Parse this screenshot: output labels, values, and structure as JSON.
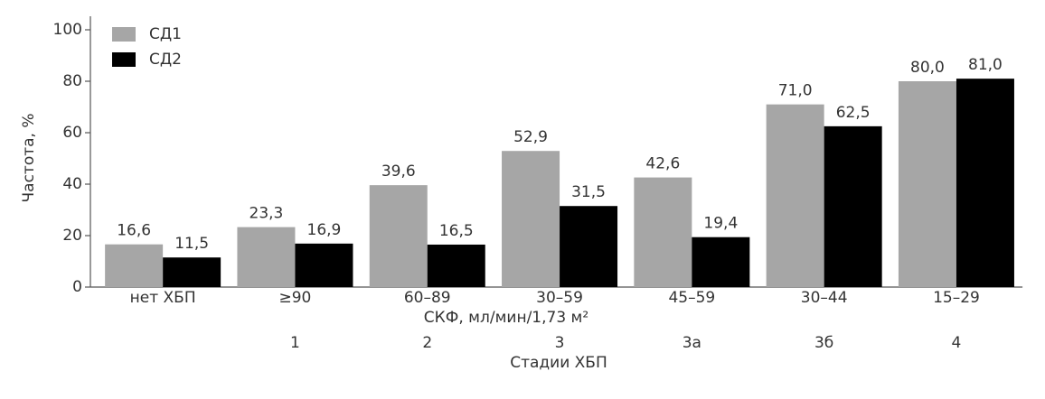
{
  "chart_data": {
    "type": "bar",
    "categories": [
      "нет ХБП",
      "≥90",
      "60–89",
      "30–59",
      "45–59",
      "30–44",
      "15–29"
    ],
    "stages": [
      null,
      "1",
      "2",
      "3",
      "3а",
      "3б",
      "4"
    ],
    "x_label": "СКФ, мл/мин/1,73 м²",
    "stage_label": "Стадии ХБП",
    "y_label": "Частота, %",
    "series": [
      {
        "name": "СД1",
        "color": "#a6a6a6",
        "values": [
          16.6,
          23.3,
          39.6,
          52.9,
          42.6,
          71.0,
          80.0
        ],
        "value_labels": [
          "16,6",
          "23,3",
          "39,6",
          "52,9",
          "42,6",
          "71,0",
          "80,0"
        ]
      },
      {
        "name": "СД2",
        "color": "#000000",
        "values": [
          11.5,
          16.9,
          16.5,
          31.5,
          19.4,
          62.5,
          81.0
        ],
        "value_labels": [
          "11,5",
          "16,9",
          "16,5",
          "31,5",
          "19,4",
          "62,5",
          "81,0"
        ]
      }
    ],
    "ylim": [
      0,
      100
    ],
    "yticks": [
      0,
      20,
      40,
      60,
      80,
      100
    ],
    "legend": "top-left"
  }
}
